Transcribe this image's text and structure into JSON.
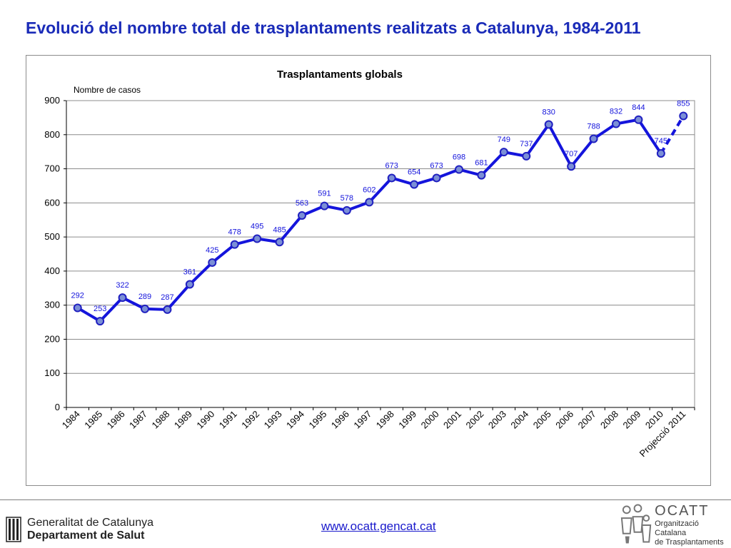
{
  "slide": {
    "title": "Evolució del nombre total de trasplantaments realitzats a Catalunya, 1984-2011"
  },
  "chart_data": {
    "type": "line",
    "title": "Trasplantaments globals",
    "ylabel": "Nombre de casos",
    "xlabel": "",
    "ylim": [
      0,
      900
    ],
    "yticks": [
      0,
      100,
      200,
      300,
      400,
      500,
      600,
      700,
      800,
      900
    ],
    "grid": true,
    "legend": "none",
    "categories": [
      "1984",
      "1985",
      "1986",
      "1987",
      "1988",
      "1989",
      "1990",
      "1991",
      "1992",
      "1993",
      "1994",
      "1995",
      "1996",
      "1997",
      "1998",
      "1999",
      "2000",
      "2001",
      "2002",
      "2003",
      "2004",
      "2005",
      "2006",
      "2007",
      "2008",
      "2009",
      "2010",
      "Projecció 2011"
    ],
    "series": [
      {
        "values": [
          292,
          253,
          322,
          289,
          287,
          361,
          425,
          478,
          495,
          485,
          563,
          591,
          578,
          602,
          673,
          654,
          673,
          698,
          681,
          749,
          737,
          830,
          707,
          788,
          832,
          844,
          745,
          855
        ],
        "color": "#1414dc",
        "marker_color": "#7b8fd6",
        "projected_from_index": 26
      }
    ]
  },
  "footer": {
    "gencat_line1": "Generalitat de Catalunya",
    "gencat_line2": "Departament de Salut",
    "link": "www.ocatt.gencat.cat",
    "ocatt_acronym": "OCATT",
    "ocatt_name_line1": "Organització Catalana",
    "ocatt_name_line2": "de Trasplantaments"
  }
}
